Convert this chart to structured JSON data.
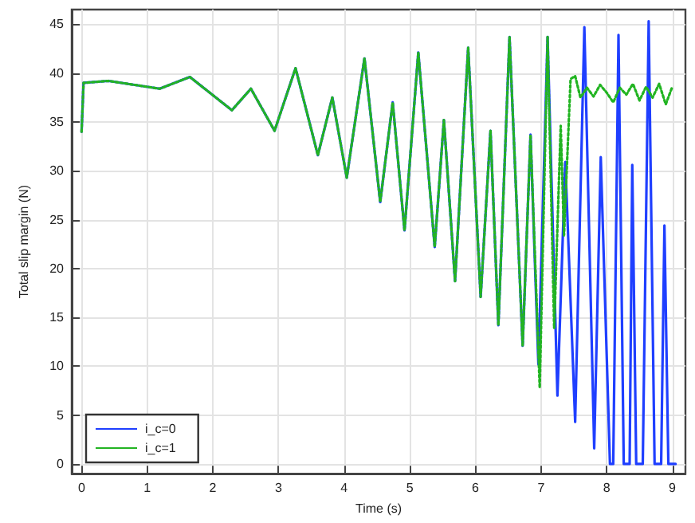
{
  "chart_data": {
    "type": "line",
    "xlabel": "Time (s)",
    "ylabel": "Total slip margin (N)",
    "xlim": [
      -0.15,
      9.2
    ],
    "xticks": [
      0,
      1,
      2,
      3,
      4,
      5,
      6,
      7,
      8,
      9
    ],
    "ylim": [
      -1,
      46.5
    ],
    "yticks": [
      0,
      5,
      10,
      15,
      20,
      25,
      30,
      35,
      40,
      45
    ],
    "grid": true,
    "legend": "bottom left",
    "marker": "none",
    "series": [
      {
        "name": "i_c=0",
        "color": "#1f3fff",
        "line_style": "solid",
        "x": [
          0,
          0.03,
          0.41,
          1.19,
          1.65,
          2.29,
          2.58,
          2.94,
          3.26,
          3.6,
          3.82,
          4.04,
          4.31,
          4.55,
          4.74,
          4.92,
          5.13,
          5.38,
          5.52,
          5.69,
          5.89,
          6.08,
          6.23,
          6.35,
          6.52,
          6.72,
          6.84,
          6.96,
          7.1,
          7.25,
          7.37,
          7.52,
          7.66,
          7.81,
          7.91,
          8.05,
          8.1,
          8.18,
          8.26,
          8.3,
          8.35,
          8.39,
          8.45,
          8.49,
          8.55,
          8.64,
          8.73,
          8.78,
          8.83,
          8.88,
          8.94,
          8.98,
          9.05
        ],
        "values": [
          34,
          39,
          39.2,
          38.4,
          39.6,
          36.2,
          38.4,
          34.1,
          40.5,
          31.6,
          37.5,
          29.3,
          41.5,
          26.8,
          37,
          23.9,
          42.1,
          22.2,
          35.2,
          18.7,
          42.6,
          17.1,
          34.1,
          14.2,
          43.7,
          12.1,
          33.7,
          10.2,
          43.7,
          7,
          30.9,
          4.3,
          44.7,
          1.6,
          31.4,
          0,
          0,
          43.9,
          0,
          0,
          0,
          30.6,
          0,
          0,
          0,
          45.3,
          0,
          0,
          0,
          24.4,
          0,
          0,
          0
        ]
      },
      {
        "name": "i_c=1",
        "color": "#22b422",
        "line_style": "dotted",
        "x": [
          0,
          0.03,
          0.41,
          1.19,
          1.65,
          2.29,
          2.58,
          2.94,
          3.26,
          3.6,
          3.82,
          4.04,
          4.31,
          4.55,
          4.74,
          4.92,
          5.13,
          5.38,
          5.52,
          5.69,
          5.89,
          6.08,
          6.23,
          6.35,
          6.52,
          6.72,
          6.84,
          6.98,
          7.1,
          7.2,
          7.3,
          7.35,
          7.45,
          7.52,
          7.6,
          7.7,
          7.8,
          7.9,
          8.0,
          8.1,
          8.2,
          8.3,
          8.4,
          8.5,
          8.6,
          8.7,
          8.8,
          8.9,
          9.0
        ],
        "values": [
          34,
          39,
          39.2,
          38.4,
          39.6,
          36.2,
          38.4,
          34.1,
          40.5,
          31.6,
          37.5,
          29.3,
          41.5,
          26.8,
          37,
          23.9,
          42.1,
          22.2,
          35.2,
          18.7,
          42.6,
          17.1,
          34.1,
          14.2,
          43.7,
          12.1,
          33.7,
          7.8,
          43.7,
          13.9,
          34.6,
          23.4,
          39.4,
          39.7,
          37.5,
          38.5,
          37.6,
          38.8,
          38,
          37,
          38.5,
          37.8,
          38.9,
          37.2,
          38.6,
          37.5,
          38.9,
          36.8,
          38.6
        ]
      }
    ]
  }
}
